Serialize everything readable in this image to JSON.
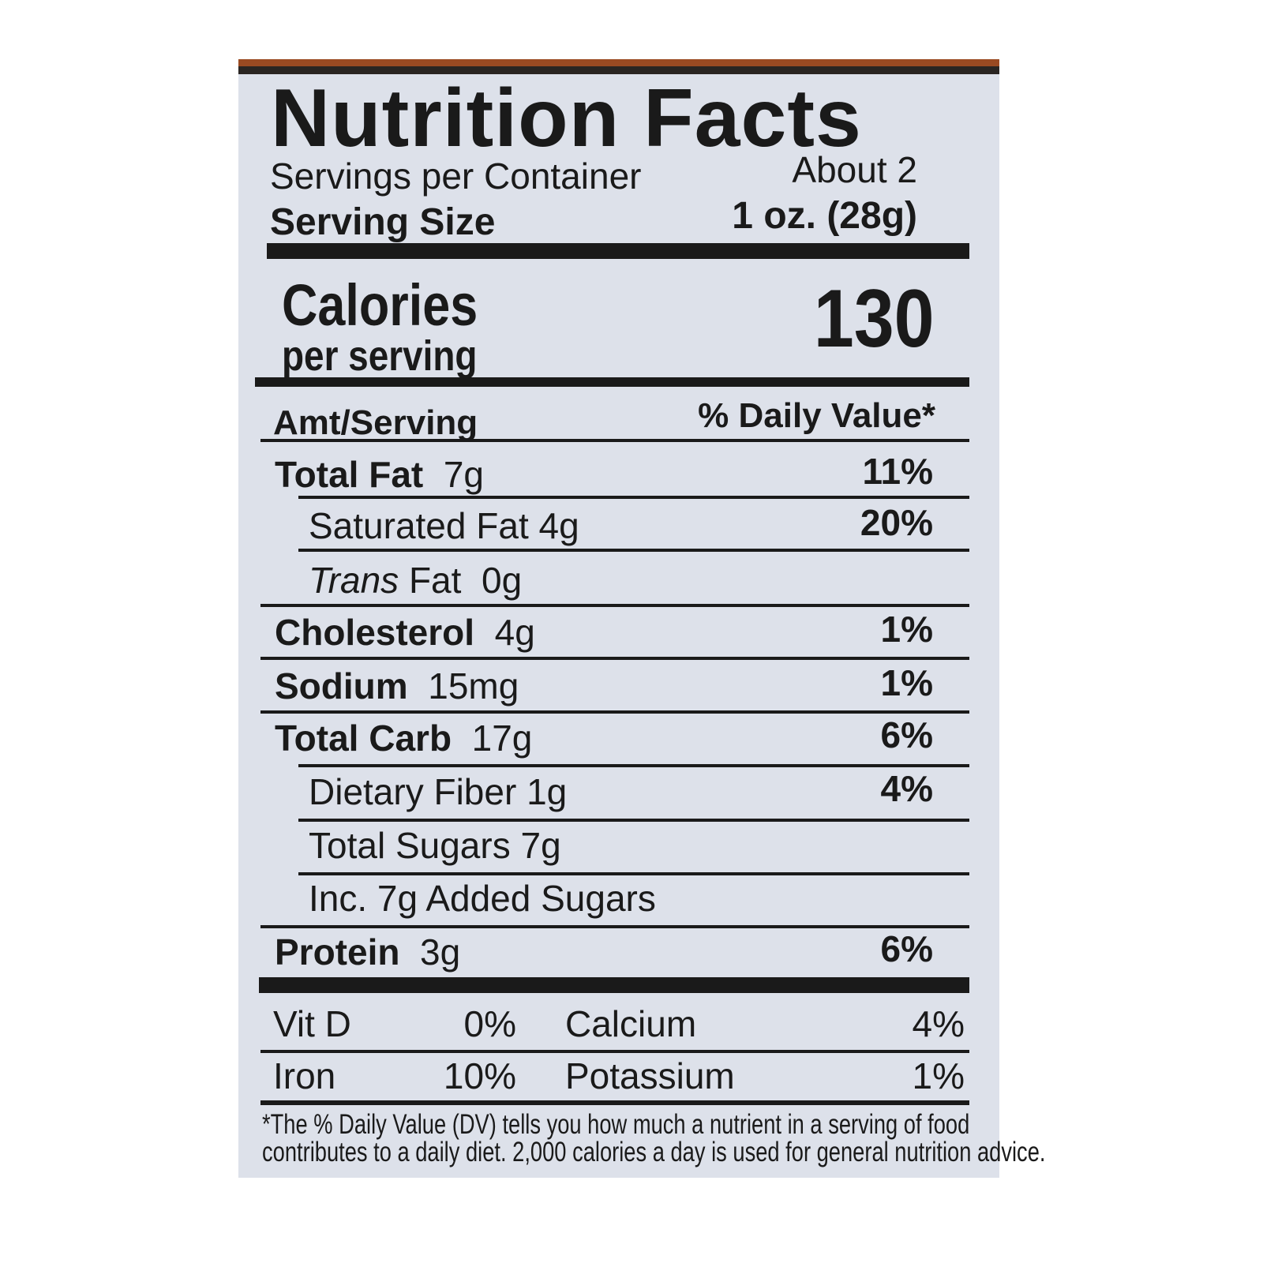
{
  "title": "Nutrition Facts",
  "servings": {
    "label": "Servings per Container",
    "value": "About 2"
  },
  "serving_size": {
    "label": "Serving Size",
    "value": "1 oz. (28g)"
  },
  "calories": {
    "label": "Calories",
    "sublabel": "per serving",
    "value": "130"
  },
  "header": {
    "amt": "Amt/Serving",
    "dv": "% Daily Value*"
  },
  "nutrients": [
    {
      "name": "Total Fat",
      "amount": "7g",
      "dv": "11%"
    },
    {
      "name": "Saturated Fat",
      "amount": "4g",
      "dv": "20%"
    },
    {
      "name": "Trans",
      "name2": "Fat",
      "amount": "0g",
      "dv": ""
    },
    {
      "name": "Cholesterol",
      "amount": "4g",
      "dv": "1%"
    },
    {
      "name": "Sodium",
      "amount": "15mg",
      "dv": "1%"
    },
    {
      "name": "Total Carb",
      "amount": "17g",
      "dv": "6%"
    },
    {
      "name": "Dietary Fiber",
      "amount": "1g",
      "dv": "4%"
    },
    {
      "name": "Total Sugars",
      "amount": "7g",
      "dv": ""
    },
    {
      "name": "Inc. 7g Added Sugars",
      "amount": "",
      "dv": ""
    },
    {
      "name": "Protein",
      "amount": "3g",
      "dv": "6%"
    }
  ],
  "vitamins": [
    {
      "name": "Vit D",
      "dv": "0%"
    },
    {
      "name": "Calcium",
      "dv": "4%"
    },
    {
      "name": "Iron",
      "dv": "10%"
    },
    {
      "name": "Potassium",
      "dv": "1%"
    }
  ],
  "footnote": [
    "*The % Daily Value (DV) tells you how much a nutrient in a serving of food",
    "contributes to a daily diet. 2,000 calories a day is used for general nutrition advice."
  ],
  "colors": {
    "label_bg": "#dde1ea",
    "ink": "#1a1a1a",
    "package_brown": "#9a4a22"
  }
}
